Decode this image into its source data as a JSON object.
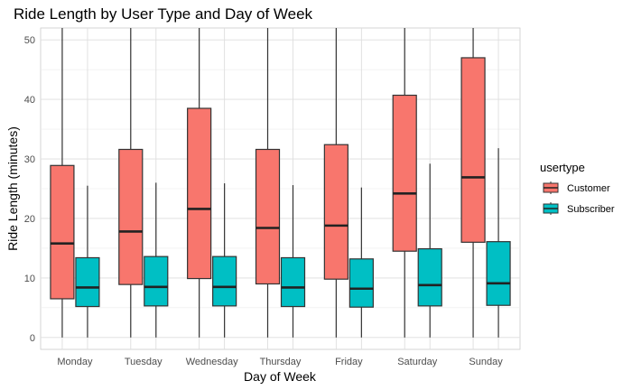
{
  "chart_data": {
    "type": "boxplot",
    "title": "Ride Length by User Type and Day of Week",
    "xlabel": "Day of Week",
    "ylabel": "Ride Length (minutes)",
    "ylim": [
      -2,
      52
    ],
    "yticks": [
      0,
      10,
      20,
      30,
      40,
      50
    ],
    "grid": true,
    "legend_position": "right",
    "legend_title": "usertype",
    "categories": [
      "Monday",
      "Tuesday",
      "Wednesday",
      "Thursday",
      "Friday",
      "Saturday",
      "Sunday"
    ],
    "series": [
      {
        "name": "Customer",
        "color": "#F8766D",
        "boxes": [
          {
            "min": 0,
            "q1": 6.5,
            "median": 15.8,
            "q3": 28.9,
            "max": 52
          },
          {
            "min": 0,
            "q1": 8.9,
            "median": 17.8,
            "q3": 31.6,
            "max": 52
          },
          {
            "min": 0,
            "q1": 9.9,
            "median": 21.6,
            "q3": 38.5,
            "max": 52
          },
          {
            "min": 0,
            "q1": 9.0,
            "median": 18.4,
            "q3": 31.6,
            "max": 52
          },
          {
            "min": 0,
            "q1": 9.8,
            "median": 18.8,
            "q3": 32.4,
            "max": 52
          },
          {
            "min": 0,
            "q1": 14.5,
            "median": 24.2,
            "q3": 40.7,
            "max": 52
          },
          {
            "min": 0,
            "q1": 16.0,
            "median": 26.9,
            "q3": 47.0,
            "max": 52
          }
        ]
      },
      {
        "name": "Subscriber",
        "color": "#00BFC4",
        "boxes": [
          {
            "min": 0,
            "q1": 5.2,
            "median": 8.4,
            "q3": 13.4,
            "max": 25.5
          },
          {
            "min": 0,
            "q1": 5.3,
            "median": 8.5,
            "q3": 13.6,
            "max": 26.0
          },
          {
            "min": 0,
            "q1": 5.3,
            "median": 8.5,
            "q3": 13.6,
            "max": 25.9
          },
          {
            "min": 0,
            "q1": 5.2,
            "median": 8.4,
            "q3": 13.4,
            "max": 25.6
          },
          {
            "min": 0,
            "q1": 5.1,
            "median": 8.2,
            "q3": 13.2,
            "max": 25.2
          },
          {
            "min": 0,
            "q1": 5.3,
            "median": 8.8,
            "q3": 14.9,
            "max": 29.2
          },
          {
            "min": 0,
            "q1": 5.4,
            "median": 9.1,
            "q3": 16.1,
            "max": 31.8
          }
        ]
      }
    ]
  }
}
